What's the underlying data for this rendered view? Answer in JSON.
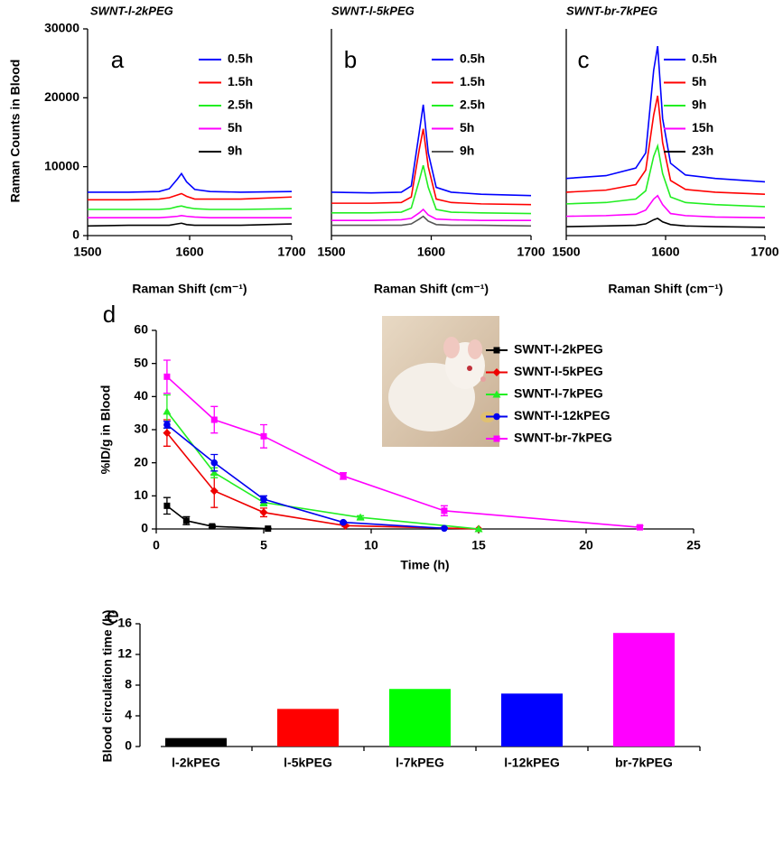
{
  "chart_data": [
    {
      "type": "line",
      "panel_label": "a",
      "title": "SWNT-l-2kPEG",
      "ylabel": "Raman Counts in Blood",
      "xlabel": "Raman Shift (cm⁻¹)",
      "x": [
        1500,
        1540,
        1570,
        1580,
        1588,
        1592,
        1597,
        1605,
        1620,
        1650,
        1700
      ],
      "xlim": [
        1500,
        1700
      ],
      "xticks": [
        1500,
        1600,
        1700
      ],
      "ylim": [
        0,
        30000
      ],
      "yticks": [
        0,
        10000,
        20000,
        30000
      ],
      "series": [
        {
          "name": "0.5h",
          "color": "#0000ff",
          "values": [
            6300,
            6300,
            6400,
            6800,
            8200,
            9000,
            7800,
            6700,
            6400,
            6300,
            6400
          ]
        },
        {
          "name": "1.5h",
          "color": "#ff0000",
          "values": [
            5200,
            5200,
            5300,
            5500,
            5900,
            6100,
            5700,
            5300,
            5300,
            5300,
            5600
          ]
        },
        {
          "name": "2.5h",
          "color": "#22ee22",
          "values": [
            3800,
            3800,
            3800,
            3900,
            4200,
            4300,
            4100,
            3900,
            3800,
            3800,
            3900
          ]
        },
        {
          "name": "5h",
          "color": "#ff00ff",
          "values": [
            2600,
            2600,
            2600,
            2700,
            2800,
            2900,
            2800,
            2700,
            2600,
            2600,
            2600
          ]
        },
        {
          "name": "9h",
          "color": "#000000",
          "values": [
            1400,
            1500,
            1500,
            1500,
            1700,
            1800,
            1600,
            1500,
            1500,
            1500,
            1700
          ]
        }
      ]
    },
    {
      "type": "line",
      "panel_label": "b",
      "title": "SWNT-l-5kPEG",
      "xlabel": "Raman Shift (cm⁻¹)",
      "x": [
        1500,
        1540,
        1570,
        1580,
        1588,
        1592,
        1597,
        1605,
        1620,
        1650,
        1700
      ],
      "xlim": [
        1500,
        1700
      ],
      "xticks": [
        1500,
        1600,
        1700
      ],
      "ylim": [
        0,
        30000
      ],
      "series": [
        {
          "name": "0.5h",
          "color": "#0000ff",
          "values": [
            6300,
            6200,
            6300,
            7200,
            15000,
            19000,
            12000,
            7000,
            6300,
            6000,
            5800
          ]
        },
        {
          "name": "1.5h",
          "color": "#ff0000",
          "values": [
            4700,
            4700,
            4800,
            5600,
            12500,
            15500,
            10000,
            5300,
            4800,
            4600,
            4500
          ]
        },
        {
          "name": "2.5h",
          "color": "#22ee22",
          "values": [
            3300,
            3300,
            3400,
            4000,
            8000,
            10200,
            7000,
            3800,
            3400,
            3300,
            3200
          ]
        },
        {
          "name": "5h",
          "color": "#ff00ff",
          "values": [
            2200,
            2200,
            2300,
            2500,
            3300,
            3800,
            3000,
            2400,
            2300,
            2200,
            2200
          ]
        },
        {
          "name": "9h",
          "color": "#555555",
          "values": [
            1500,
            1500,
            1500,
            1700,
            2400,
            2800,
            2100,
            1600,
            1500,
            1500,
            1400
          ]
        }
      ]
    },
    {
      "type": "line",
      "panel_label": "c",
      "title": "SWNT-br-7kPEG",
      "xlabel": "Raman Shift (cm⁻¹)",
      "x": [
        1500,
        1540,
        1570,
        1580,
        1588,
        1592,
        1597,
        1605,
        1620,
        1650,
        1700
      ],
      "xlim": [
        1500,
        1700
      ],
      "xticks": [
        1500,
        1600,
        1700
      ],
      "ylim": [
        0,
        30000
      ],
      "series": [
        {
          "name": "0.5h",
          "color": "#0000ff",
          "values": [
            8300,
            8700,
            9800,
            12000,
            24000,
            27500,
            17000,
            10500,
            8800,
            8300,
            7800
          ]
        },
        {
          "name": "5h",
          "color": "#ff0000",
          "values": [
            6300,
            6600,
            7400,
            9500,
            17500,
            20300,
            13500,
            8000,
            6700,
            6300,
            6000
          ]
        },
        {
          "name": "9h",
          "color": "#22ee22",
          "values": [
            4600,
            4800,
            5300,
            6500,
            11500,
            13000,
            9000,
            5600,
            4800,
            4500,
            4200
          ]
        },
        {
          "name": "15h",
          "color": "#ff00ff",
          "values": [
            2800,
            2900,
            3100,
            3700,
            5300,
            5800,
            4500,
            3200,
            2900,
            2700,
            2600
          ]
        },
        {
          "name": "23h",
          "color": "#000000",
          "values": [
            1300,
            1400,
            1500,
            1700,
            2300,
            2500,
            2000,
            1600,
            1400,
            1300,
            1200
          ]
        }
      ]
    },
    {
      "type": "scatter",
      "panel_label": "d",
      "ylabel": "%ID/g in Blood",
      "xlabel": "Time (h)",
      "xlim": [
        0,
        25
      ],
      "xticks": [
        0,
        5,
        10,
        15,
        20,
        25
      ],
      "ylim": [
        0,
        60
      ],
      "yticks": [
        0,
        10,
        20,
        30,
        40,
        50,
        60
      ],
      "series": [
        {
          "name": "SWNT-l-2kPEG",
          "color": "#000000",
          "marker": "square",
          "x": [
            0.5,
            1.4,
            2.6,
            5.2
          ],
          "values": [
            7,
            2.5,
            0.8,
            0.1
          ],
          "errors": [
            2.5,
            1.2,
            0.4,
            0.1
          ]
        },
        {
          "name": "SWNT-l-5kPEG",
          "color": "#ee0000",
          "marker": "diamond",
          "x": [
            0.5,
            2.7,
            5,
            8.8,
            15
          ],
          "values": [
            29,
            11.5,
            5,
            1,
            0
          ],
          "errors": [
            4,
            5,
            1.3,
            0.3,
            0
          ]
        },
        {
          "name": "SWNT-l-7kPEG",
          "color": "#22ee22",
          "marker": "triangle",
          "x": [
            0.5,
            2.7,
            5,
            9.5,
            15
          ],
          "values": [
            35.5,
            17,
            8,
            3.5,
            0
          ],
          "errors": [
            5,
            1.5,
            1,
            0.5,
            0
          ]
        },
        {
          "name": "SWNT-l-12kPEG",
          "color": "#0000ee",
          "marker": "circle",
          "x": [
            0.5,
            2.7,
            5,
            8.7,
            13.4
          ],
          "values": [
            31.5,
            20,
            9,
            2,
            0.2
          ],
          "errors": [
            1,
            2.5,
            1,
            0.3,
            0.2
          ]
        },
        {
          "name": "SWNT-br-7kPEG",
          "color": "#ff00ff",
          "marker": "square",
          "x": [
            0.5,
            2.7,
            5,
            8.7,
            13.4,
            22.5
          ],
          "values": [
            46,
            33,
            28,
            16,
            5.5,
            0.5
          ],
          "errors": [
            5,
            4,
            3.5,
            1,
            1.5,
            0.5
          ]
        }
      ]
    },
    {
      "type": "bar",
      "panel_label": "e",
      "ylabel": "Blood circulation time (h)",
      "categories": [
        "l-2kPEG",
        "l-5kPEG",
        "l-7kPEG",
        "l-12kPEG",
        "br-7kPEG"
      ],
      "values": [
        1.1,
        4.9,
        7.5,
        6.9,
        14.8
      ],
      "colors": [
        "#000000",
        "#ff0000",
        "#00ff00",
        "#0000ff",
        "#ff00ff"
      ],
      "ylim": [
        0,
        16
      ],
      "yticks": [
        0,
        4,
        8,
        12,
        16
      ]
    }
  ]
}
